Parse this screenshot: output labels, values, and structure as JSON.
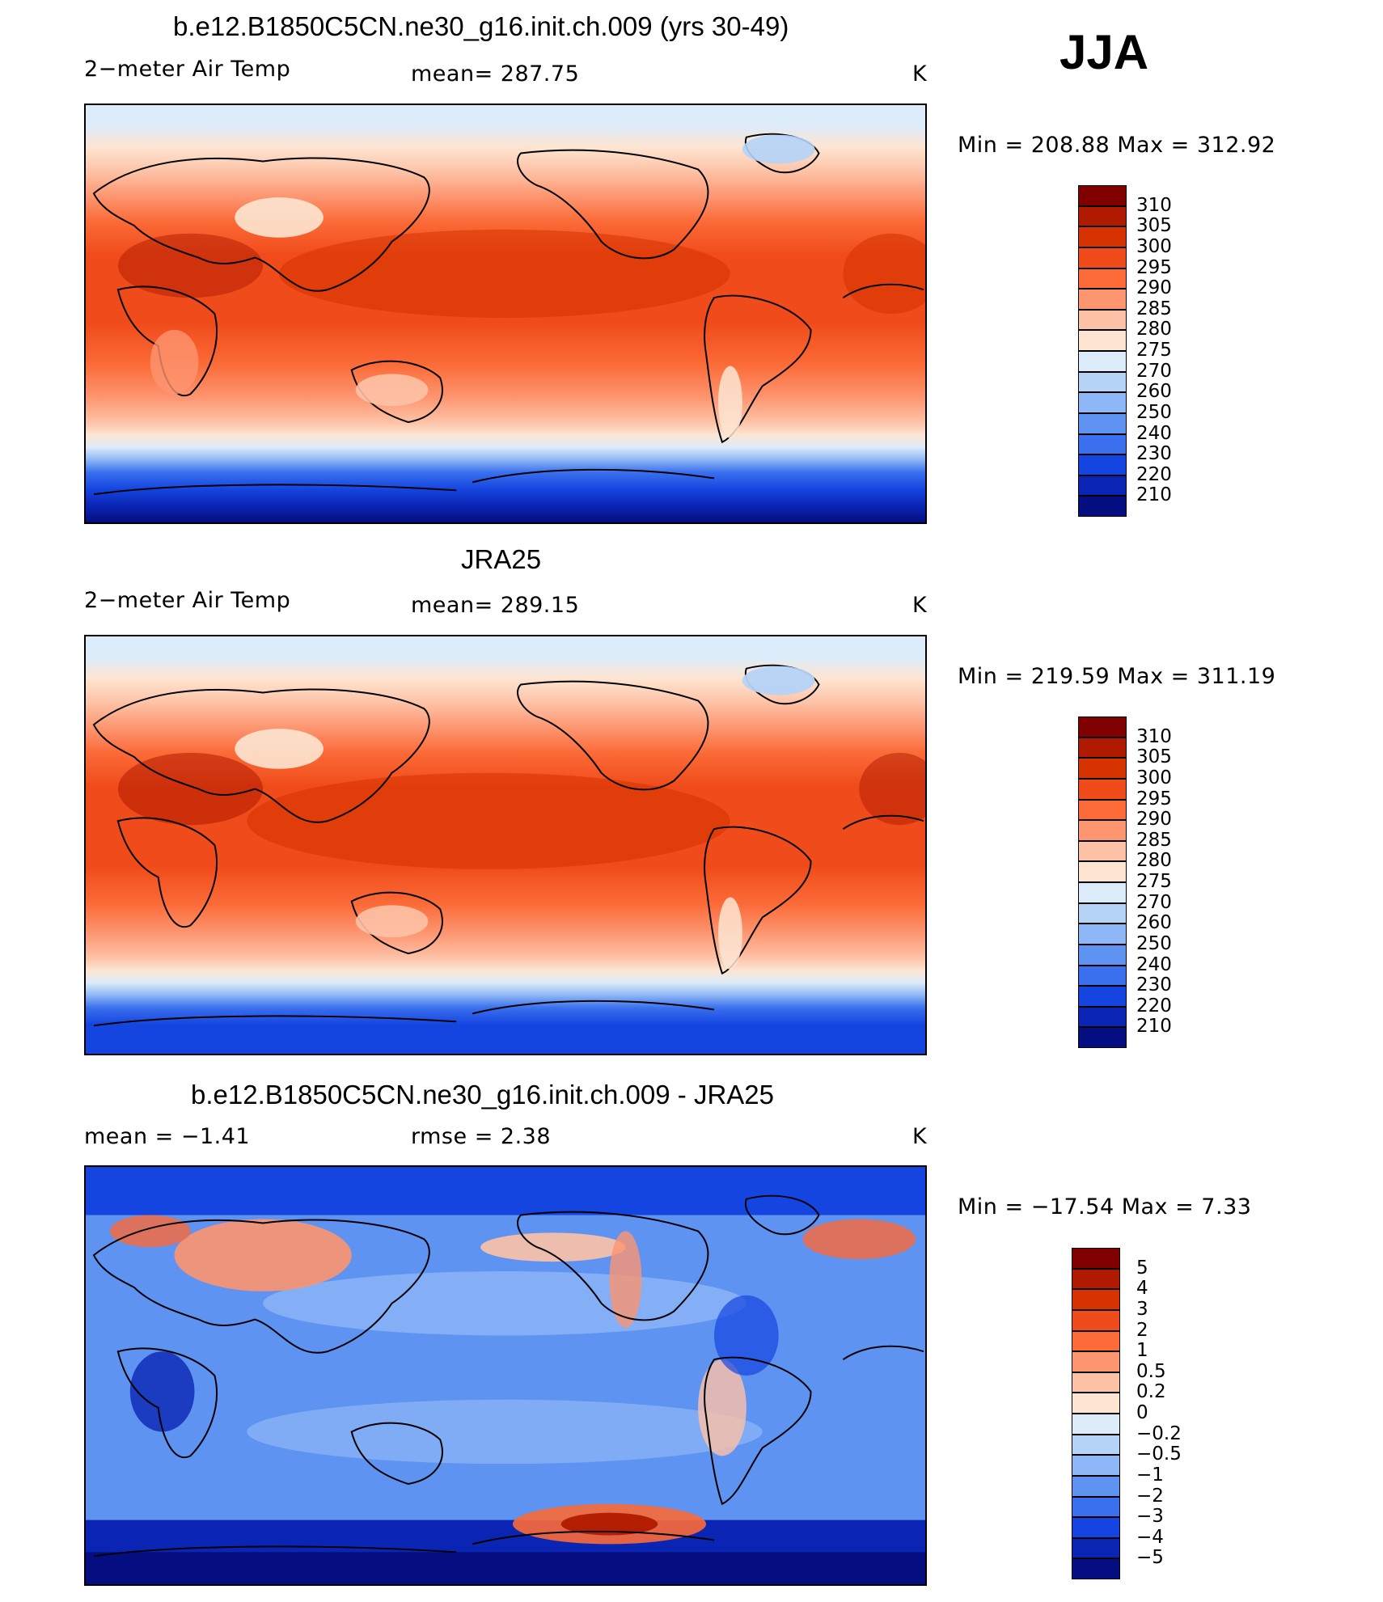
{
  "season": "JJA",
  "panels": [
    {
      "title": "b.e12.B1850C5CN.ne30_g16.init.ch.009 (yrs 30-49)",
      "left_label": "2−meter Air Temp",
      "center_label": "mean=  287.75",
      "right_label": "K",
      "minmax": "Min  =  208.88  Max  =  312.92",
      "colorbar": {
        "ticks": [
          "310",
          "305",
          "300",
          "295",
          "290",
          "285",
          "280",
          "275",
          "270",
          "260",
          "250",
          "240",
          "230",
          "220",
          "210"
        ],
        "colors": [
          "#800000",
          "#b01a00",
          "#d63300",
          "#f04b1a",
          "#fb6a37",
          "#fd9570",
          "#fdc2a6",
          "#fde5d2",
          "#dcebf9",
          "#b5d3f7",
          "#8db7f6",
          "#5f93f2",
          "#3a70ee",
          "#1545e0",
          "#0a25b4",
          "#040e80"
        ]
      },
      "field": {
        "type": "temperature",
        "min": 208.88,
        "max": 312.92,
        "mean": 287.75
      }
    },
    {
      "title": "JRA25",
      "left_label": "2−meter Air Temp",
      "center_label": "mean=  289.15",
      "right_label": "K",
      "minmax": "Min  =  219.59  Max  =  311.19",
      "colorbar": {
        "ticks": [
          "310",
          "305",
          "300",
          "295",
          "290",
          "285",
          "280",
          "275",
          "270",
          "260",
          "250",
          "240",
          "230",
          "220",
          "210"
        ],
        "colors": [
          "#800000",
          "#b01a00",
          "#d63300",
          "#f04b1a",
          "#fb6a37",
          "#fd9570",
          "#fdc2a6",
          "#fde5d2",
          "#dcebf9",
          "#b5d3f7",
          "#8db7f6",
          "#5f93f2",
          "#3a70ee",
          "#1545e0",
          "#0a25b4",
          "#040e80"
        ]
      },
      "field": {
        "type": "temperature",
        "min": 219.59,
        "max": 311.19,
        "mean": 289.15
      }
    },
    {
      "title": "b.e12.B1850C5CN.ne30_g16.init.ch.009 - JRA25",
      "left_label": "mean  =    −1.41",
      "center_label": "rmse  =     2.38",
      "right_label": "K",
      "minmax": "Min  =  −17.54  Max  =     7.33",
      "colorbar": {
        "ticks": [
          "5",
          "4",
          "3",
          "2",
          "1",
          "0.5",
          "0.2",
          "0",
          "−0.2",
          "−0.5",
          "−1",
          "−2",
          "−3",
          "−4",
          "−5"
        ],
        "colors": [
          "#800000",
          "#b01a00",
          "#d63300",
          "#f04b1a",
          "#fb6a37",
          "#fd9570",
          "#fdc2a6",
          "#fde5d2",
          "#dcebf9",
          "#b5d3f7",
          "#8db7f6",
          "#5f93f2",
          "#3a70ee",
          "#1545e0",
          "#0a25b4",
          "#040e80"
        ]
      },
      "field": {
        "type": "difference",
        "min": -17.54,
        "max": 7.33,
        "mean": -1.41,
        "rmse": 2.38
      }
    }
  ]
}
